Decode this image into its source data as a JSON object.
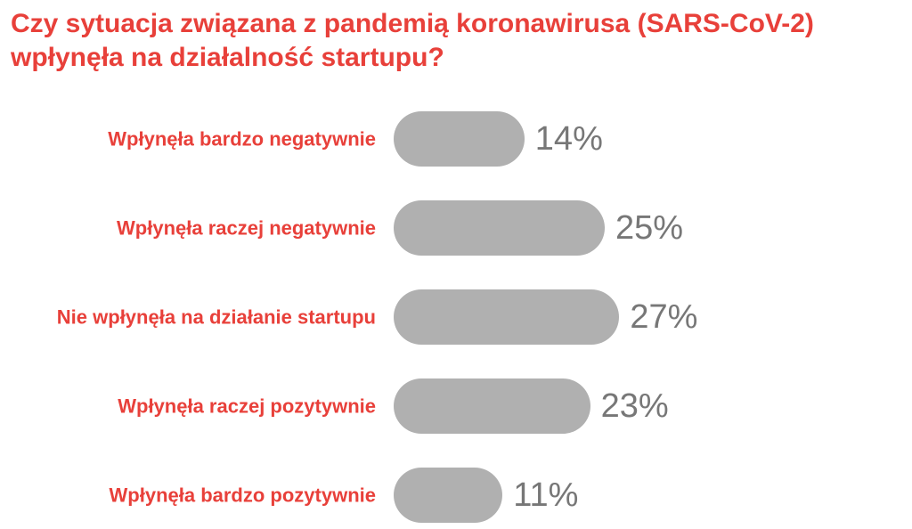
{
  "title": "Czy sytuacja związana z pandemią koronawirusa (SARS-CoV-2) wpłynęła na działalność startupu?",
  "colors": {
    "title": "#e8403a",
    "category_label": "#e8403a",
    "bar": "#b0b0b0",
    "value_label": "#777777"
  },
  "chart_data": {
    "type": "bar",
    "orientation": "horizontal",
    "title": "Czy sytuacja związana z pandemią koronawirusa (SARS-CoV-2) wpłynęła na działalność startupu?",
    "categories": [
      "Wpłynęła bardzo negatywnie",
      "Wpłynęła raczej negatywnie",
      "Nie wpłynęła na działanie startupu",
      "Wpłynęła raczej pozytywnie",
      "Wpłynęła bardzo pozytywnie"
    ],
    "values": [
      14,
      25,
      27,
      23,
      11
    ],
    "value_labels": [
      "14%",
      "25%",
      "27%",
      "23%",
      "11%"
    ],
    "unit": "%",
    "xlabel": "",
    "ylabel": "",
    "grid": false,
    "legend": "none"
  }
}
